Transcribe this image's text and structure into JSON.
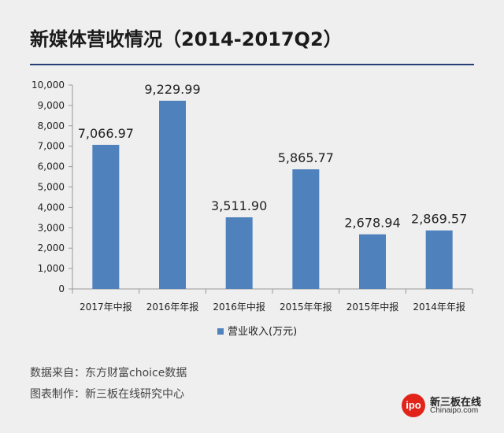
{
  "title": "新媒体营收情况（2014-2017Q2）",
  "chart_data": {
    "type": "bar",
    "categories": [
      "2017年中报",
      "2016年年报",
      "2016年中报",
      "2015年年报",
      "2015年中报",
      "2014年年报"
    ],
    "series": [
      {
        "name": "营业收入(万元)",
        "values": [
          7066.97,
          9229.99,
          3511.9,
          5865.77,
          2678.94,
          2869.57
        ]
      }
    ],
    "value_labels": [
      "7,066.97",
      "9,229.99",
      "3,511.90",
      "5,865.77",
      "2,678.94",
      "2,869.57"
    ],
    "ylim": [
      0,
      10000
    ],
    "yticks": [
      0,
      1000,
      2000,
      3000,
      4000,
      5000,
      6000,
      7000,
      8000,
      9000,
      10000
    ],
    "ytick_labels": [
      "0",
      "1,000",
      "2,000",
      "3,000",
      "4,000",
      "5,000",
      "6,000",
      "7,000",
      "8,000",
      "9,000",
      "10,000"
    ],
    "legend": "bottom",
    "grid": false,
    "bar_color": "#4f81bd"
  },
  "footer": {
    "source": "数据来自：东方财富choice数据",
    "maker": "图表制作：新三板在线研究中心"
  },
  "logo": {
    "mark": "ipo",
    "name_cn": "新三板在线",
    "name_en": "Chinaipo.com"
  }
}
